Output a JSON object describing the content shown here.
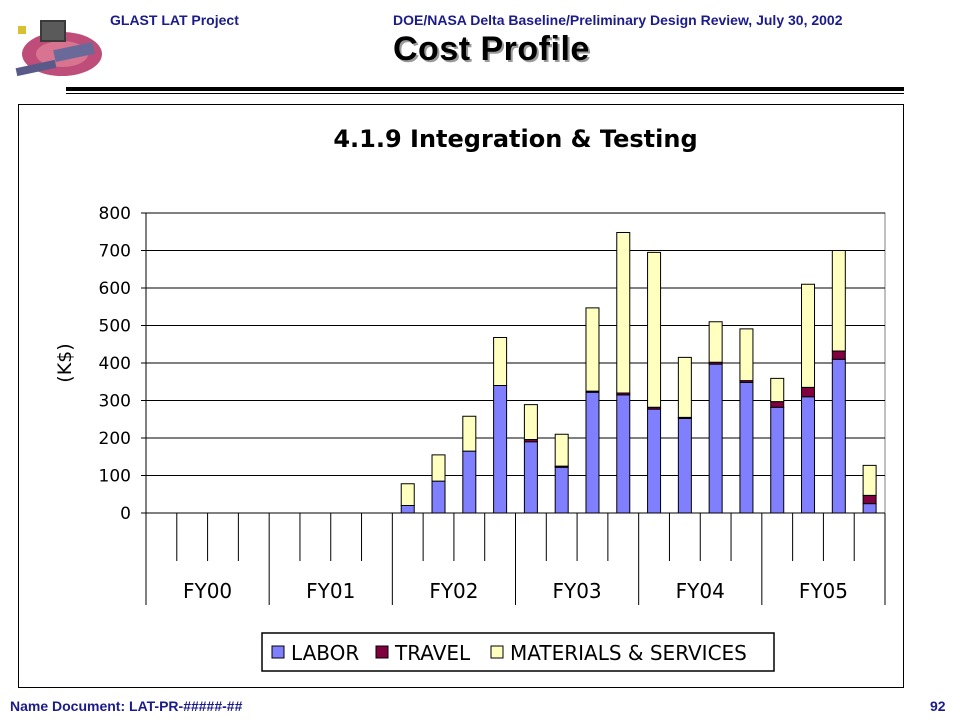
{
  "header": {
    "project": "GLAST LAT Project",
    "review": "DOE/NASA Delta Baseline/Preliminary Design Review, July 30, 2002",
    "title": "Cost Profile"
  },
  "footer": {
    "document": "Name  Document: LAT-PR-#####-##",
    "page_number": "92"
  },
  "colors": {
    "labor": "#8080ff",
    "travel": "#800040",
    "materials": "#ffffc0",
    "header_text": "#1b1b8c"
  },
  "chart_data": {
    "type": "bar",
    "stacked": true,
    "title": "4.1.9 Integration & Testing",
    "ylabel": "(K$)",
    "xlabel": "",
    "ylim": [
      0,
      800
    ],
    "yticks": [
      0,
      100,
      200,
      300,
      400,
      500,
      600,
      700,
      800
    ],
    "grid": true,
    "legend_position": "bottom",
    "fiscal_years": [
      "FY00",
      "FY01",
      "FY02",
      "FY03",
      "FY04",
      "FY05"
    ],
    "periods_per_year": 4,
    "series": [
      {
        "name": "LABOR",
        "values": [
          0,
          0,
          0,
          0,
          0,
          0,
          0,
          0,
          20,
          85,
          165,
          340,
          190,
          122,
          322,
          315,
          277,
          252,
          397,
          348,
          282,
          310,
          410,
          25
        ]
      },
      {
        "name": "TRAVEL",
        "values": [
          0,
          0,
          0,
          0,
          0,
          0,
          0,
          0,
          0,
          0,
          0,
          0,
          6,
          3,
          3,
          5,
          5,
          3,
          5,
          5,
          15,
          25,
          22,
          22
        ]
      },
      {
        "name": "MATERIALS & SERVICES",
        "values": [
          0,
          0,
          0,
          0,
          0,
          0,
          0,
          0,
          58,
          70,
          93,
          128,
          93,
          85,
          222,
          428,
          413,
          160,
          108,
          138,
          62,
          275,
          268,
          80
        ]
      }
    ]
  }
}
